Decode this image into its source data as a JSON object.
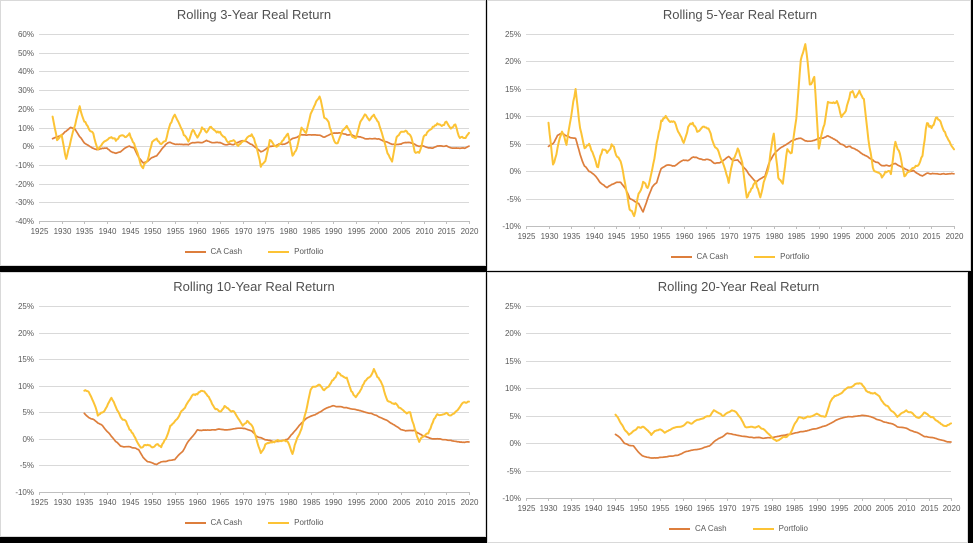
{
  "colors": {
    "background": "#000000",
    "panel_background": "#ffffff",
    "panel_border": "#d9d9d9",
    "gridline": "#d9d9d9",
    "axis_line": "#bfbfbf",
    "tick_text": "#595959",
    "title_text": "#515151",
    "ca_cash": "#dd7e3c",
    "portfolio": "#fcc335"
  },
  "chart_data": [
    {
      "type": "line",
      "title": "Rolling 3-Year Real Return",
      "ylim": [
        -40,
        60
      ],
      "ytick_step": 10,
      "y_tick_labels": [
        "60%",
        "50%",
        "40%",
        "30%",
        "20%",
        "10%",
        "0%",
        "-10%",
        "-20%",
        "-30%",
        "-40%"
      ],
      "x_range": [
        1925,
        2020
      ],
      "x_ticks": [
        1925,
        1930,
        1935,
        1940,
        1945,
        1950,
        1955,
        1960,
        1965,
        1970,
        1975,
        1980,
        1985,
        1990,
        1995,
        2000,
        2005,
        2010,
        2015,
        2020
      ],
      "x_tick_labels": [
        "1925",
        "1930",
        "1935",
        "1940",
        "1945",
        "1950",
        "1955",
        "1960",
        "1965",
        "1970",
        "1975",
        "1980",
        "1985",
        "1990",
        "1995",
        "2000",
        "2005",
        "2010",
        "2015",
        "2020"
      ],
      "grid": true,
      "legend_position": "bottom",
      "series": [
        {
          "name": "CA Cash",
          "color": "#dd7e3c",
          "width": 1.7,
          "noise": 0.35,
          "start_year": 1928,
          "values": [
            4,
            5,
            6,
            8,
            10,
            9,
            5,
            2,
            0,
            -1,
            -2,
            -1,
            -1,
            -3,
            -4,
            -3,
            -1,
            0,
            -1,
            -6,
            -9,
            -8,
            -6,
            -5,
            -2,
            1,
            2,
            1,
            1,
            1,
            1,
            2,
            2,
            2,
            3,
            2,
            2,
            2,
            1,
            1,
            1,
            2,
            3,
            2,
            1,
            -1,
            -3,
            -2,
            0,
            0,
            1,
            1,
            2,
            4,
            5,
            6,
            6,
            6,
            6,
            6,
            5,
            6,
            7,
            7,
            7,
            6,
            6,
            5,
            5,
            4,
            4,
            4,
            4,
            3,
            2,
            1,
            1,
            1,
            2,
            2,
            1,
            0,
            0,
            -1,
            -1,
            0,
            0,
            0,
            -1,
            -1,
            -1,
            -1,
            0
          ]
        },
        {
          "name": "Portfolio",
          "color": "#fcc335",
          "width": 2,
          "noise": 1.6,
          "start_year": 1928,
          "values": [
            16,
            4,
            6,
            -7,
            3,
            12,
            21,
            13,
            10,
            7,
            -1,
            1,
            3,
            5,
            3,
            5,
            4,
            6,
            1,
            -6,
            -12,
            -7,
            2,
            4,
            1,
            3,
            12,
            16,
            12,
            5,
            3,
            8,
            5,
            10,
            7,
            10,
            8,
            7,
            5,
            2,
            3,
            0,
            3,
            4,
            6,
            0,
            -11,
            -8,
            3,
            -1,
            1,
            3,
            7,
            -5,
            0,
            9,
            6,
            18,
            22,
            28,
            16,
            12,
            4,
            1,
            8,
            12,
            6,
            4,
            14,
            17,
            14,
            16,
            13,
            5,
            -4,
            -9,
            4,
            7,
            9,
            6,
            -2,
            -4,
            5,
            8,
            10,
            12,
            11,
            13,
            9,
            11,
            4,
            5,
            7
          ]
        }
      ]
    },
    {
      "type": "line",
      "title": "Rolling 5-Year Real Return",
      "ylim": [
        -10,
        25
      ],
      "ytick_step": 5,
      "y_tick_labels": [
        "25%",
        "20%",
        "15%",
        "10%",
        "5%",
        "0%",
        "-5%",
        "-10%"
      ],
      "x_range": [
        1925,
        2020
      ],
      "x_ticks": [
        1925,
        1930,
        1935,
        1940,
        1945,
        1950,
        1955,
        1960,
        1965,
        1970,
        1975,
        1980,
        1985,
        1990,
        1995,
        2000,
        2005,
        2010,
        2015,
        2020
      ],
      "x_tick_labels": [
        "1925",
        "1930",
        "1935",
        "1940",
        "1945",
        "1950",
        "1955",
        "1960",
        "1965",
        "1970",
        "1975",
        "1980",
        "1985",
        "1990",
        "1995",
        "2000",
        "2005",
        "2010",
        "2015",
        "2020"
      ],
      "grid": true,
      "legend_position": "bottom",
      "series": [
        {
          "name": "CA Cash",
          "color": "#dd7e3c",
          "width": 1.7,
          "noise": 0.2,
          "start_year": 1930,
          "values": [
            4.5,
            5,
            6.5,
            7,
            6.5,
            6,
            6,
            3,
            1,
            0,
            -0.5,
            -1.5,
            -2.5,
            -3,
            -2.5,
            -2,
            -2,
            -3,
            -5,
            -5.5,
            -6,
            -7.5,
            -5,
            -3,
            -2,
            0.5,
            1,
            1,
            1,
            1.5,
            2,
            2,
            2.5,
            2.5,
            2,
            2,
            2,
            1.5,
            1.5,
            2,
            2.5,
            2,
            2,
            1,
            0,
            -1,
            -2,
            -1.5,
            -1,
            1.5,
            3,
            4,
            4.5,
            5,
            5.5,
            6,
            6,
            5.5,
            5.5,
            5.5,
            6,
            6,
            6.5,
            6,
            5.5,
            5,
            4.5,
            4.5,
            4,
            3.5,
            3,
            2.5,
            2,
            1.5,
            1,
            1,
            1,
            1.5,
            1,
            0.5,
            0,
            0,
            -0.5,
            -1,
            -0.5,
            -0.5,
            -0.5,
            -0.5,
            -0.5,
            -0.5,
            -0.5
          ]
        },
        {
          "name": "Portfolio",
          "color": "#fcc335",
          "width": 2,
          "noise": 0.8,
          "start_year": 1930,
          "values": [
            9,
            1,
            4,
            7,
            5,
            10,
            15,
            8,
            4,
            5,
            3,
            1,
            4,
            3,
            5,
            3,
            2,
            -2,
            -7,
            -8,
            -4,
            -2,
            -3,
            0,
            5,
            9,
            10,
            9,
            9,
            7,
            5,
            8,
            9,
            7,
            8,
            8,
            7,
            4,
            3,
            1,
            -2,
            2,
            4,
            2,
            -5,
            -3,
            -2,
            -5,
            -2,
            1.5,
            7,
            -1,
            -2,
            4,
            3,
            10,
            20,
            23,
            16,
            17,
            4,
            8,
            12,
            12.5,
            13,
            9.5,
            11,
            14.5,
            13.5,
            14.5,
            13.5,
            6,
            0.5,
            0,
            -1,
            0,
            -0.5,
            5.5,
            3,
            -1,
            0,
            1,
            1,
            3,
            9,
            8,
            10,
            9,
            7,
            5,
            4
          ]
        }
      ]
    },
    {
      "type": "line",
      "title": "Rolling 10-Year Real Return",
      "ylim": [
        -10,
        25
      ],
      "ytick_step": 5,
      "y_tick_labels": [
        "25%",
        "20%",
        "15%",
        "10%",
        "5%",
        "0%",
        "-5%",
        "-10%"
      ],
      "x_range": [
        1925,
        2020
      ],
      "x_ticks": [
        1925,
        1930,
        1935,
        1940,
        1945,
        1950,
        1955,
        1960,
        1965,
        1970,
        1975,
        1980,
        1985,
        1990,
        1995,
        2000,
        2005,
        2010,
        2015,
        2020
      ],
      "x_tick_labels": [
        "1925",
        "1930",
        "1935",
        "1940",
        "1945",
        "1950",
        "1955",
        "1960",
        "1965",
        "1970",
        "1975",
        "1980",
        "1985",
        "1990",
        "1995",
        "2000",
        "2005",
        "2010",
        "2015",
        "2020"
      ],
      "grid": true,
      "legend_position": "bottom",
      "series": [
        {
          "name": "CA Cash",
          "color": "#dd7e3c",
          "width": 1.7,
          "noise": 0.12,
          "start_year": 1935,
          "values": [
            4.8,
            4,
            3.7,
            3,
            2.5,
            1.5,
            0.5,
            -0.5,
            -1.3,
            -1.5,
            -1.5,
            -1.7,
            -2,
            -3.5,
            -4.3,
            -4.5,
            -4.8,
            -4.3,
            -4.2,
            -4,
            -3.8,
            -3,
            -2,
            -0.5,
            0.5,
            1.7,
            1.6,
            1.7,
            1.7,
            1.7,
            1.8,
            1.7,
            1.8,
            1.9,
            2,
            2,
            1.8,
            1.5,
            0.5,
            0.2,
            -0.2,
            -0.3,
            -0.5,
            -0.5,
            -0.3,
            0,
            1,
            2,
            3,
            3.8,
            4.2,
            4.5,
            5,
            5.5,
            6,
            6.2,
            6.1,
            6,
            5.8,
            5.6,
            5.5,
            5.3,
            5,
            4.8,
            4.6,
            4.2,
            3.8,
            3.4,
            2.8,
            2.3,
            1.8,
            1.5,
            1.6,
            1.5,
            1,
            0.5,
            0.2,
            0,
            0,
            -0.1,
            -0.2,
            -0.3,
            -0.5,
            -0.6,
            -0.6,
            -0.6
          ]
        },
        {
          "name": "Portfolio",
          "color": "#fcc335",
          "width": 2,
          "noise": 0.45,
          "start_year": 1935,
          "values": [
            9,
            9,
            7,
            4.5,
            5,
            6,
            7.5,
            6,
            4,
            3.5,
            2,
            0.5,
            -1,
            -1.5,
            -1,
            -1.5,
            -1,
            -1.5,
            0,
            2.5,
            3.5,
            4.5,
            5.5,
            7,
            8,
            8.5,
            9,
            8.5,
            7,
            5.5,
            5,
            6,
            5.5,
            5,
            4,
            2.5,
            3.5,
            2.5,
            0,
            -3,
            -1,
            -0.5,
            -0.5,
            -0.5,
            0,
            -0.5,
            -3,
            0,
            2,
            5,
            9,
            10,
            10,
            9,
            10,
            11,
            12.5,
            12,
            11.5,
            9,
            8,
            9,
            11,
            11.5,
            13,
            11.5,
            10,
            7,
            6.5,
            6.5,
            5.5,
            5,
            5,
            2,
            -0.5,
            0.5,
            1,
            3,
            5,
            4.5,
            5,
            4.5,
            5,
            6,
            7,
            7
          ]
        }
      ]
    },
    {
      "type": "line",
      "title": "Rolling 20-Year Real Return",
      "ylim": [
        -10,
        25
      ],
      "ytick_step": 5,
      "y_tick_labels": [
        "25%",
        "20%",
        "15%",
        "10%",
        "5%",
        "0%",
        "-5%",
        "-10%"
      ],
      "x_range": [
        1925,
        2020
      ],
      "x_ticks": [
        1925,
        1930,
        1935,
        1940,
        1945,
        1950,
        1955,
        1960,
        1965,
        1970,
        1975,
        1980,
        1985,
        1990,
        1995,
        2000,
        2005,
        2010,
        2015,
        2020
      ],
      "x_tick_labels": [
        "1925",
        "1930",
        "1935",
        "1940",
        "1945",
        "1950",
        "1955",
        "1960",
        "1965",
        "1970",
        "1975",
        "1980",
        "1985",
        "1990",
        "1995",
        "2000",
        "2005",
        "2010",
        "2015",
        "2020"
      ],
      "grid": true,
      "legend_position": "bottom",
      "series": [
        {
          "name": "CA Cash",
          "color": "#dd7e3c",
          "width": 1.7,
          "noise": 0.08,
          "start_year": 1945,
          "values": [
            1.6,
            1,
            0,
            -0.4,
            -0.5,
            -1.5,
            -2.3,
            -2.6,
            -2.7,
            -2.7,
            -2.6,
            -2.5,
            -2.4,
            -2.3,
            -2.2,
            -1.8,
            -1.5,
            -1.3,
            -1.2,
            -1,
            -0.8,
            -0.5,
            0.2,
            0.8,
            1.2,
            1.8,
            1.7,
            1.5,
            1.3,
            1.2,
            1.1,
            1,
            1,
            0.9,
            1,
            1,
            1.2,
            1.4,
            1.5,
            1.6,
            1.8,
            2,
            2.1,
            2.3,
            2.5,
            2.7,
            2.9,
            3.2,
            3.6,
            4,
            4.4,
            4.7,
            4.8,
            4.8,
            4.9,
            5,
            5,
            4.8,
            4.5,
            4.2,
            3.9,
            3.7,
            3.5,
            3,
            2.9,
            2.7,
            2.3,
            2,
            1.7,
            1.2,
            1.1,
            1,
            0.8,
            0.5,
            0.3,
            0.2
          ]
        },
        {
          "name": "Portfolio",
          "color": "#fcc335",
          "width": 2,
          "noise": 0.25,
          "start_year": 1945,
          "values": [
            5.2,
            4,
            2.5,
            1.5,
            2.2,
            2.8,
            3,
            2.5,
            1.5,
            2.2,
            2.5,
            1.8,
            2.5,
            2.8,
            3,
            3.3,
            3.8,
            3.5,
            4,
            4.3,
            4.8,
            5,
            6,
            5.5,
            5,
            5.5,
            5.9,
            5.5,
            4.5,
            3,
            3,
            2.8,
            3,
            2.5,
            1.8,
            1,
            0.4,
            1,
            1.2,
            1.5,
            3.5,
            4.8,
            4.5,
            5,
            4.8,
            5.2,
            4.8,
            5,
            7.5,
            8.5,
            8.8,
            9.5,
            10,
            10.5,
            11,
            10.8,
            9.5,
            9,
            9.2,
            8.5,
            7.2,
            6.5,
            5.8,
            4.8,
            5.5,
            6,
            5.5,
            5,
            4.6,
            5.5,
            5,
            4.8,
            4,
            3.4,
            3.2,
            3.6
          ]
        }
      ]
    }
  ]
}
